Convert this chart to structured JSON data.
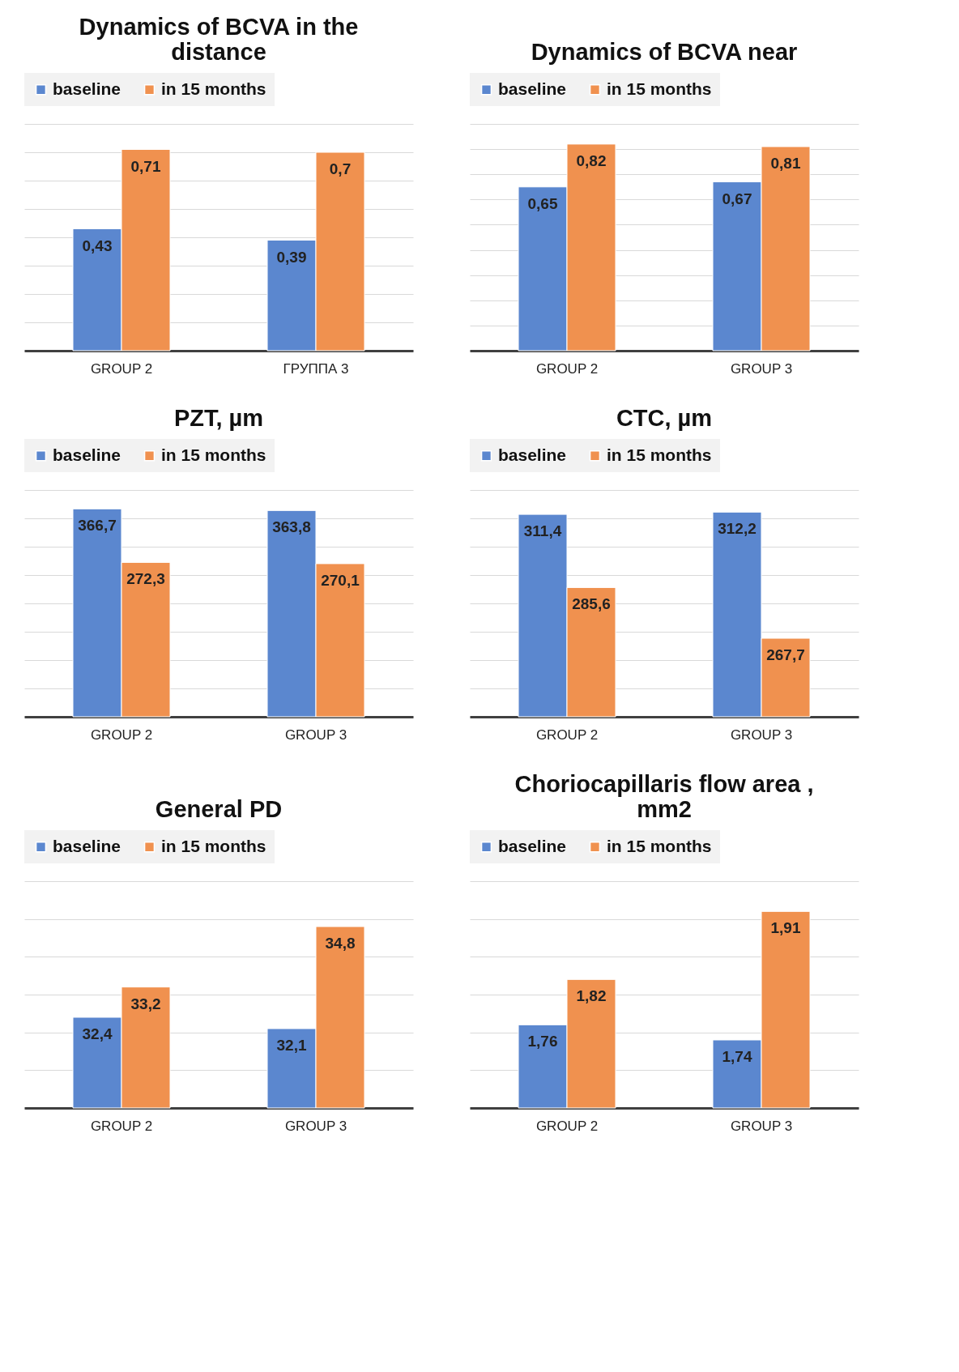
{
  "chart_data": [
    {
      "type": "bar",
      "title": "Dynamics of BCVA in the distance",
      "categories": [
        "GROUP 2",
        "ГРУППА 3"
      ],
      "series": [
        {
          "name": "baseline",
          "color": "#5b87cf",
          "values": [
            0.43,
            0.39
          ],
          "value_labels": [
            "0,43",
            "0,39"
          ]
        },
        {
          "name": "in 15 months",
          "color": "#f0914f",
          "values": [
            0.71,
            0.7
          ],
          "value_labels": [
            "0,71",
            "0,7"
          ]
        }
      ],
      "ylim": [
        0,
        0.8
      ],
      "yticks": [
        {
          "value": 0,
          "label": null
        },
        {
          "value": 0.1,
          "label": null
        },
        {
          "value": 0.2,
          "label": null
        },
        {
          "value": 0.3,
          "label": null
        },
        {
          "value": 0.4,
          "label": null
        },
        {
          "value": 0.5,
          "label": null
        },
        {
          "value": 0.6,
          "label": null
        },
        {
          "value": 0.7,
          "label": null
        },
        {
          "value": 0.8,
          "label": null
        }
      ],
      "tick_labels": "x",
      "grid": "y",
      "legend": "top"
    },
    {
      "type": "bar",
      "title": "Dynamics of BCVA near",
      "categories": [
        "GROUP 2",
        "GROUP 3"
      ],
      "series": [
        {
          "name": "baseline",
          "color": "#5b87cf",
          "values": [
            0.65,
            0.67
          ],
          "value_labels": [
            "0,65",
            "0,67"
          ]
        },
        {
          "name": "in 15 months",
          "color": "#f0914f",
          "values": [
            0.82,
            0.81
          ],
          "value_labels": [
            "0,82",
            "0,81"
          ]
        }
      ],
      "ylim": [
        0,
        0.9
      ],
      "yticks": [
        {
          "value": 0,
          "label": null
        },
        {
          "value": 0.1,
          "label": null
        },
        {
          "value": 0.2,
          "label": null
        },
        {
          "value": 0.3,
          "label": null
        },
        {
          "value": 0.4,
          "label": null
        },
        {
          "value": 0.5,
          "label": null
        },
        {
          "value": 0.6,
          "label": null
        },
        {
          "value": 0.7,
          "label": null
        },
        {
          "value": 0.8,
          "label": null
        },
        {
          "value": 0.9,
          "label": null
        }
      ],
      "tick_labels": "x",
      "grid": "y",
      "legend": "top"
    },
    {
      "type": "bar",
      "title": "PZT, µm",
      "categories": [
        "GROUP 2",
        "GROUP 3"
      ],
      "series": [
        {
          "name": "baseline",
          "color": "#5b87cf",
          "values": [
            366.7,
            363.8
          ],
          "value_labels": [
            "366,7",
            "363,8"
          ]
        },
        {
          "name": "in 15 months",
          "color": "#f0914f",
          "values": [
            272.3,
            270.1
          ],
          "value_labels": [
            "272,3",
            "270,1"
          ]
        }
      ],
      "ylim": [
        0,
        400
      ],
      "yticks": [
        {
          "value": 0,
          "label": null
        },
        {
          "value": 50,
          "label": null
        },
        {
          "value": 100,
          "label": null
        },
        {
          "value": 150,
          "label": null
        },
        {
          "value": 200,
          "label": null
        },
        {
          "value": 250,
          "label": null
        },
        {
          "value": 300,
          "label": null
        },
        {
          "value": 350,
          "label": null
        },
        {
          "value": 400,
          "label": null
        }
      ],
      "tick_labels": "x",
      "grid": "y",
      "legend": "top"
    },
    {
      "type": "bar",
      "title": "CTC, µm",
      "categories": [
        "GROUP 2",
        "GROUP 3"
      ],
      "series": [
        {
          "name": "baseline",
          "color": "#5b87cf",
          "values": [
            311.4,
            312.2
          ],
          "value_labels": [
            "311,4",
            "312,2"
          ]
        },
        {
          "name": "in 15 months",
          "color": "#f0914f",
          "values": [
            285.6,
            267.7
          ],
          "value_labels": [
            "285,6",
            "267,7"
          ]
        }
      ],
      "ylim": [
        240,
        320
      ],
      "yticks": [
        {
          "value": 240,
          "label": null
        },
        {
          "value": 250,
          "label": null
        },
        {
          "value": 260,
          "label": null
        },
        {
          "value": 270,
          "label": null
        },
        {
          "value": 280,
          "label": null
        },
        {
          "value": 290,
          "label": null
        },
        {
          "value": 300,
          "label": null
        },
        {
          "value": 310,
          "label": null
        },
        {
          "value": 320,
          "label": null
        }
      ],
      "tick_labels": "x",
      "grid": "y",
      "legend": "top"
    },
    {
      "type": "bar",
      "title": "General PD",
      "categories": [
        "GROUP 2",
        "GROUP 3"
      ],
      "series": [
        {
          "name": "baseline",
          "color": "#5b87cf",
          "values": [
            32.4,
            32.1
          ],
          "value_labels": [
            "32,4",
            "32,1"
          ]
        },
        {
          "name": "in 15 months",
          "color": "#f0914f",
          "values": [
            33.2,
            34.8
          ],
          "value_labels": [
            "33,2",
            "34,8"
          ]
        }
      ],
      "ylim": [
        30,
        36
      ],
      "yticks": [
        {
          "value": 30,
          "label": null
        },
        {
          "value": 31,
          "label": null
        },
        {
          "value": 32,
          "label": null
        },
        {
          "value": 33,
          "label": null
        },
        {
          "value": 34,
          "label": null
        },
        {
          "value": 35,
          "label": null
        },
        {
          "value": 36,
          "label": null
        }
      ],
      "tick_labels": "x",
      "grid": "y",
      "legend": "top"
    },
    {
      "type": "bar",
      "title": "Choriocapillaris flow area , mm2",
      "categories": [
        "GROUP 2",
        "GROUP 3"
      ],
      "series": [
        {
          "name": "baseline",
          "color": "#5b87cf",
          "values": [
            1.76,
            1.74
          ],
          "value_labels": [
            "1,76",
            "1,74"
          ]
        },
        {
          "name": "in 15 months",
          "color": "#f0914f",
          "values": [
            1.82,
            1.91
          ],
          "value_labels": [
            "1,82",
            "1,91"
          ]
        }
      ],
      "ylim": [
        1.65,
        1.95
      ],
      "yticks": [
        {
          "value": 1.65,
          "label": null
        },
        {
          "value": 1.7,
          "label": null
        },
        {
          "value": 1.75,
          "label": null
        },
        {
          "value": 1.8,
          "label": null
        },
        {
          "value": 1.85,
          "label": null
        },
        {
          "value": 1.9,
          "label": null
        },
        {
          "value": 1.95,
          "label": null
        }
      ],
      "tick_labels": "x",
      "grid": "y",
      "legend": "top"
    }
  ]
}
